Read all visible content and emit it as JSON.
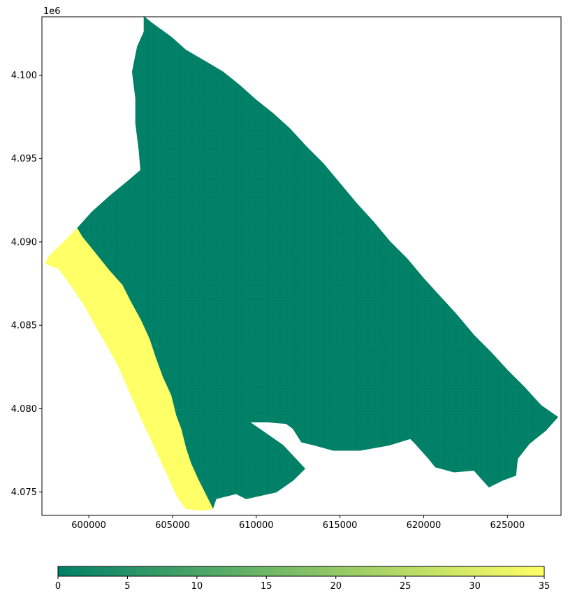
{
  "chart_data": {
    "type": "choropleth",
    "title": "",
    "xlabel": "",
    "ylabel": "",
    "xlim": [
      597200,
      628200
    ],
    "ylim": [
      4073600,
      4103500
    ],
    "x_ticks": [
      600000,
      605000,
      610000,
      615000,
      620000,
      625000
    ],
    "x_tick_labels": [
      "600000",
      "605000",
      "610000",
      "615000",
      "620000",
      "625000"
    ],
    "y_ticks": [
      4075000,
      4080000,
      4085000,
      4090000,
      4095000,
      4100000
    ],
    "y_tick_labels": [
      "4.075",
      "4.080",
      "4.085",
      "4.090",
      "4.095",
      "4.100"
    ],
    "y_offset_label": "1e6",
    "grid": false,
    "colorbar": {
      "orientation": "horizontal",
      "placement": "bottom",
      "min": 0,
      "max": 35,
      "ticks": [
        0,
        5,
        10,
        15,
        20,
        25,
        30,
        35
      ],
      "tick_labels": [
        "0",
        "5",
        "10",
        "15",
        "20",
        "25",
        "30",
        "35"
      ],
      "colormap": "summer",
      "color_min": "#008066",
      "color_max": "#ffff66"
    },
    "regions": [
      {
        "value": 0,
        "color": "#008066",
        "outline": [
          [
            603300,
            4103500
          ],
          [
            603800,
            4103100
          ],
          [
            604900,
            4102300
          ],
          [
            605800,
            4101500
          ],
          [
            607000,
            4100800
          ],
          [
            608000,
            4100200
          ],
          [
            609000,
            4099400
          ],
          [
            610000,
            4098500
          ],
          [
            611000,
            4097700
          ],
          [
            612000,
            4096800
          ],
          [
            613000,
            4095700
          ],
          [
            614000,
            4094700
          ],
          [
            615000,
            4093500
          ],
          [
            616000,
            4092300
          ],
          [
            617000,
            4091200
          ],
          [
            618000,
            4090000
          ],
          [
            619000,
            4089000
          ],
          [
            620000,
            4087800
          ],
          [
            621000,
            4086700
          ],
          [
            622000,
            4085600
          ],
          [
            623000,
            4084400
          ],
          [
            624000,
            4083400
          ],
          [
            625000,
            4082300
          ],
          [
            626000,
            4081300
          ],
          [
            627000,
            4080200
          ],
          [
            628000,
            4079500
          ],
          [
            627300,
            4078700
          ],
          [
            626300,
            4077900
          ],
          [
            625600,
            4077000
          ],
          [
            625500,
            4076000
          ],
          [
            624700,
            4075700
          ],
          [
            623900,
            4075300
          ],
          [
            623000,
            4076300
          ],
          [
            621800,
            4076200
          ],
          [
            620700,
            4076500
          ],
          [
            620300,
            4077000
          ],
          [
            619500,
            4077900
          ],
          [
            619200,
            4078200
          ],
          [
            617900,
            4077800
          ],
          [
            616200,
            4077500
          ],
          [
            614600,
            4077500
          ],
          [
            613500,
            4077800
          ],
          [
            612700,
            4078000
          ],
          [
            612200,
            4078800
          ],
          [
            611800,
            4079100
          ],
          [
            610700,
            4079200
          ],
          [
            609600,
            4079200
          ],
          [
            611600,
            4077800
          ],
          [
            612900,
            4076400
          ],
          [
            612200,
            4075700
          ],
          [
            611200,
            4075000
          ],
          [
            609400,
            4074600
          ],
          [
            608800,
            4074900
          ],
          [
            607600,
            4074600
          ],
          [
            607400,
            4074000
          ],
          [
            607100,
            4074600
          ],
          [
            606500,
            4075800
          ],
          [
            606100,
            4076700
          ],
          [
            605800,
            4077600
          ],
          [
            605500,
            4078800
          ],
          [
            605200,
            4079600
          ],
          [
            604900,
            4080800
          ],
          [
            604400,
            4081900
          ],
          [
            604000,
            4083000
          ],
          [
            603600,
            4084200
          ],
          [
            603100,
            4085300
          ],
          [
            602500,
            4086400
          ],
          [
            602000,
            4087400
          ],
          [
            601200,
            4088300
          ],
          [
            600400,
            4089300
          ],
          [
            599600,
            4090300
          ],
          [
            599300,
            4090800
          ],
          [
            600200,
            4091800
          ],
          [
            601300,
            4092800
          ],
          [
            602400,
            4093700
          ],
          [
            603100,
            4094300
          ],
          [
            603000,
            4095500
          ],
          [
            602800,
            4097100
          ],
          [
            602800,
            4098600
          ],
          [
            602600,
            4100200
          ],
          [
            602900,
            4101700
          ],
          [
            603300,
            4102600
          ]
        ]
      },
      {
        "value": 35,
        "color": "#ffff66",
        "outline": [
          [
            599300,
            4090800
          ],
          [
            599600,
            4090300
          ],
          [
            600400,
            4089300
          ],
          [
            601200,
            4088300
          ],
          [
            602000,
            4087400
          ],
          [
            602500,
            4086400
          ],
          [
            603100,
            4085300
          ],
          [
            603600,
            4084200
          ],
          [
            604000,
            4083000
          ],
          [
            604400,
            4081900
          ],
          [
            604900,
            4080800
          ],
          [
            605200,
            4079600
          ],
          [
            605500,
            4078800
          ],
          [
            605800,
            4077600
          ],
          [
            606100,
            4076700
          ],
          [
            606500,
            4075800
          ],
          [
            607100,
            4074600
          ],
          [
            607400,
            4074000
          ],
          [
            606800,
            4073900
          ],
          [
            605800,
            4074000
          ],
          [
            605300,
            4074700
          ],
          [
            604800,
            4075800
          ],
          [
            604200,
            4077100
          ],
          [
            603600,
            4078400
          ],
          [
            603000,
            4079700
          ],
          [
            602400,
            4081100
          ],
          [
            601800,
            4082500
          ],
          [
            601200,
            4083600
          ],
          [
            600500,
            4084800
          ],
          [
            599800,
            4086100
          ],
          [
            599000,
            4087300
          ],
          [
            598200,
            4088400
          ],
          [
            597400,
            4088700
          ],
          [
            597600,
            4089100
          ],
          [
            598400,
            4089900
          ]
        ]
      }
    ]
  }
}
